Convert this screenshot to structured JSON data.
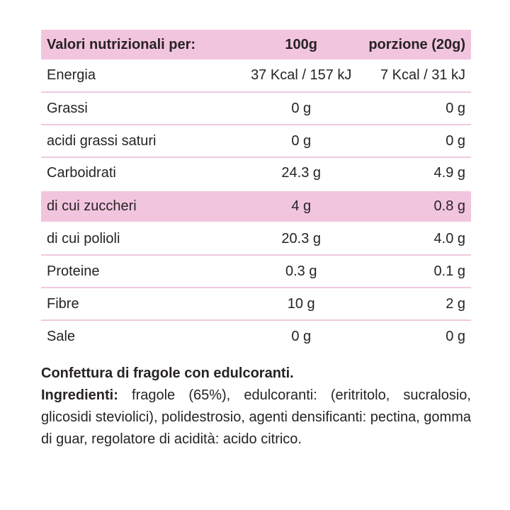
{
  "colors": {
    "highlight_pink": "#F2C5DE",
    "separator_pink": "#F0C9DF",
    "text_dark": "#272325",
    "background": "#FFFFFF"
  },
  "table": {
    "header": {
      "col_label": "Valori nutrizionali per:",
      "col_100g": "100g",
      "col_portion": "porzione (20g)"
    },
    "rows": [
      {
        "label": "Energia",
        "per100": "37 Kcal / 157 kJ",
        "portion": "7 Kcal / 31 kJ",
        "highlight": false
      },
      {
        "label": "Grassi",
        "per100": "0 g",
        "portion": "0 g",
        "highlight": false
      },
      {
        "label": "acidi grassi saturi",
        "per100": "0 g",
        "portion": "0 g",
        "highlight": false
      },
      {
        "label": "Carboidrati",
        "per100": "24.3 g",
        "portion": "4.9 g",
        "highlight": false
      },
      {
        "label": "di cui zuccheri",
        "per100": "4 g",
        "portion": "0.8 g",
        "highlight": true
      },
      {
        "label": "di cui polioli",
        "per100": "20.3 g",
        "portion": "4.0 g",
        "highlight": false
      },
      {
        "label": "Proteine",
        "per100": "0.3 g",
        "portion": "0.1 g",
        "highlight": false
      },
      {
        "label": "Fibre",
        "per100": "10 g",
        "portion": "2 g",
        "highlight": false
      },
      {
        "label": "Sale",
        "per100": "0 g",
        "portion": "0 g",
        "highlight": false
      }
    ]
  },
  "description": {
    "title": "Confettura di fragole con edulcoranti.",
    "ingredients_label": "Ingredienti:",
    "ingredients_text": "fragole (65%), edulcoranti: (eritritolo, sucralosio, glicosidi steviolici), polidestrosio, agenti densificanti: pectina, gomma di guar, regolatore di acidità: acido citrico."
  }
}
